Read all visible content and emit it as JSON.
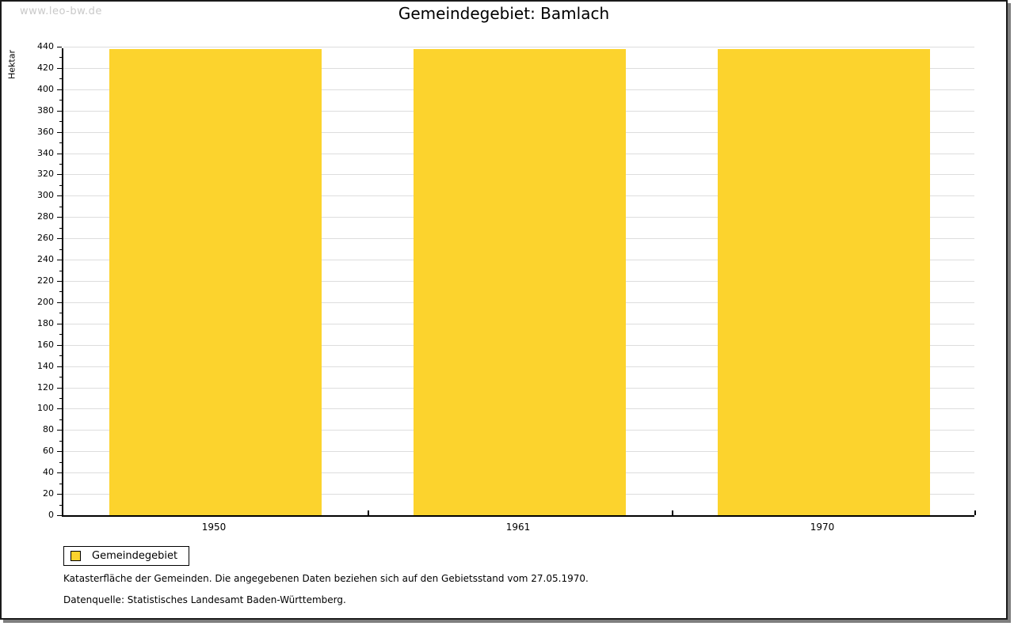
{
  "watermark": "www.leo-bw.de",
  "title": "Gemeindegebiet: Bamlach",
  "chart_data": {
    "type": "bar",
    "title": "Gemeindegebiet: Bamlach",
    "categories": [
      "1950",
      "1961",
      "1970"
    ],
    "series": [
      {
        "name": "Gemeindegebiet",
        "values": [
          438,
          438,
          438
        ]
      }
    ],
    "xlabel": "",
    "ylabel": "Hektar",
    "ylim": [
      0,
      440
    ],
    "ytick_step": 20,
    "yminor_step": 10,
    "grid": true,
    "legend_position": "bottom-left",
    "colors": {
      "bar": "#FCD32D",
      "grid": "#DDDDDD",
      "axis": "#000000"
    }
  },
  "legend": {
    "items": [
      {
        "label": "Gemeindegebiet",
        "color": "#FCD32D"
      }
    ]
  },
  "footnotes": [
    "Katasterfläche der Gemeinden. Die angegebenen Daten beziehen sich auf den Gebietsstand vom 27.05.1970.",
    "Datenquelle: Statistisches Landesamt Baden-Württemberg."
  ]
}
